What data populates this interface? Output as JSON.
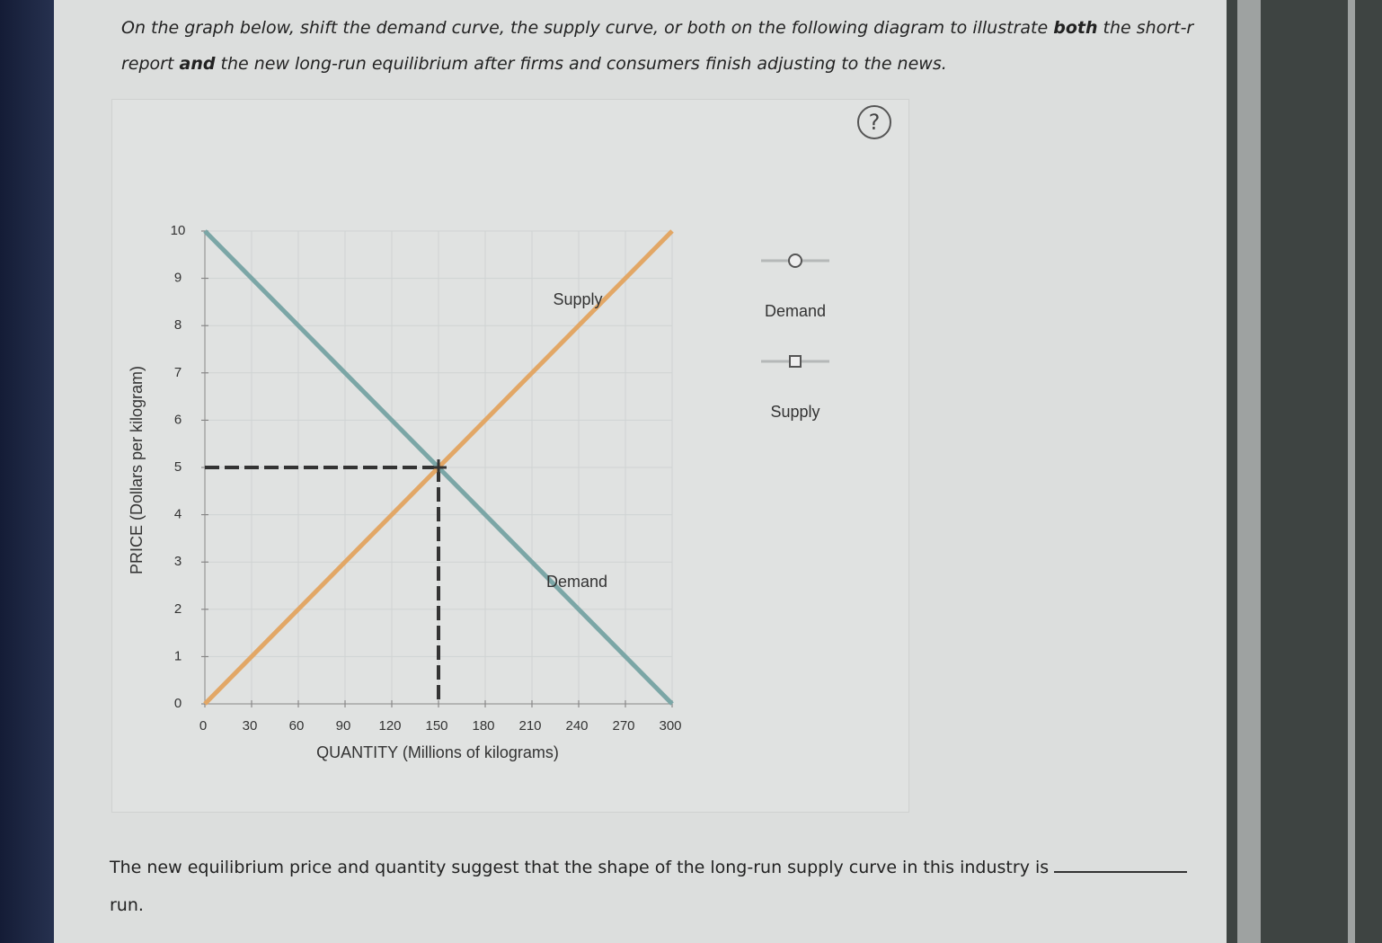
{
  "instructions": {
    "line1": [
      "On the graph below, shift the demand curve, the supply curve, or both on the following diagram to illustrate",
      "both",
      "the short-r"
    ],
    "line2": [
      "report",
      "and",
      "the new long-run equilibrium after firms and consumers finish adjusting to the news."
    ]
  },
  "help": "?",
  "chart_data": {
    "type": "line",
    "xlabel": "QUANTITY (Millions of kilograms)",
    "ylabel": "PRICE (Dollars per kilogram)",
    "xlim": [
      0,
      300
    ],
    "ylim": [
      0,
      10
    ],
    "xticks": [
      0,
      30,
      60,
      90,
      120,
      150,
      180,
      210,
      240,
      270,
      300
    ],
    "yticks": [
      0,
      1,
      2,
      3,
      4,
      5,
      6,
      7,
      8,
      9,
      10
    ],
    "grid": true,
    "series": [
      {
        "name": "Demand",
        "color": "#7ba6a6",
        "marker": "circle",
        "x": [
          0,
          300
        ],
        "values": [
          10,
          0
        ]
      },
      {
        "name": "Supply",
        "color": "#e2a766",
        "marker": "square",
        "x": [
          0,
          300
        ],
        "values": [
          0,
          10
        ]
      }
    ],
    "equilibrium": {
      "x": 150,
      "y": 5
    }
  },
  "question": {
    "text": "The new equilibrium price and quantity suggest that the shape of the long-run supply curve in this industry is",
    "continuation": "run."
  }
}
